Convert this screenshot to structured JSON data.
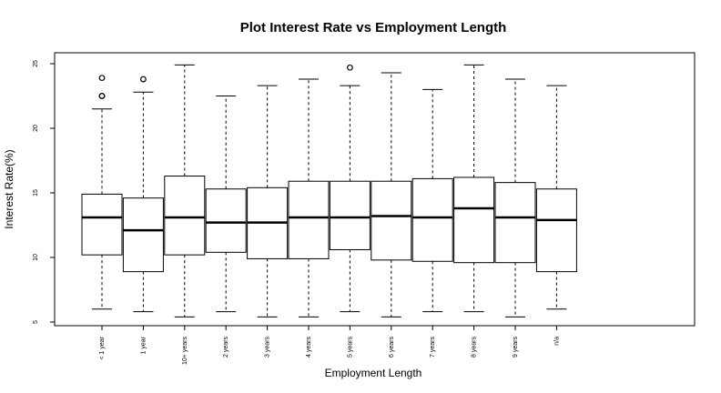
{
  "chart_data": {
    "type": "boxplot",
    "title": "Plot Interest Rate vs Employment Length",
    "xlabel": "Employment Length",
    "ylabel": "Interest Rate(%)",
    "ylim": [
      5,
      25
    ],
    "yticks": [
      5,
      10,
      15,
      20,
      25
    ],
    "grid": false,
    "legend": "none",
    "categories": [
      "< 1 year",
      "1 year",
      "10+ years",
      "2 years",
      "3 years",
      "4 years",
      "5 years",
      "6 years",
      "7 years",
      "8 years",
      "9 years",
      "n/a"
    ],
    "boxes": [
      {
        "category": "< 1 year",
        "min": 6.0,
        "q1": 10.2,
        "median": 13.1,
        "q3": 14.9,
        "max": 21.5,
        "outliers": [
          22.5,
          22.5,
          23.9
        ]
      },
      {
        "category": "1 year",
        "min": 5.8,
        "q1": 8.9,
        "median": 12.1,
        "q3": 14.6,
        "max": 22.8,
        "outliers": [
          23.8
        ]
      },
      {
        "category": "10+ years",
        "min": 5.4,
        "q1": 10.2,
        "median": 13.1,
        "q3": 16.3,
        "max": 24.9,
        "outliers": []
      },
      {
        "category": "2 years",
        "min": 5.8,
        "q1": 10.4,
        "median": 12.7,
        "q3": 15.3,
        "max": 22.5,
        "outliers": []
      },
      {
        "category": "3 years",
        "min": 5.4,
        "q1": 9.9,
        "median": 12.7,
        "q3": 15.4,
        "max": 23.3,
        "outliers": []
      },
      {
        "category": "4 years",
        "min": 5.4,
        "q1": 9.9,
        "median": 13.1,
        "q3": 15.9,
        "max": 23.8,
        "outliers": []
      },
      {
        "category": "5 years",
        "min": 5.8,
        "q1": 10.6,
        "median": 13.1,
        "q3": 15.9,
        "max": 23.3,
        "outliers": [
          24.7
        ]
      },
      {
        "category": "6 years",
        "min": 5.4,
        "q1": 9.8,
        "median": 13.2,
        "q3": 15.9,
        "max": 24.3,
        "outliers": []
      },
      {
        "category": "7 years",
        "min": 5.8,
        "q1": 9.7,
        "median": 13.1,
        "q3": 16.1,
        "max": 23.0,
        "outliers": []
      },
      {
        "category": "8 years",
        "min": 5.8,
        "q1": 9.6,
        "median": 13.8,
        "q3": 16.2,
        "max": 24.9,
        "outliers": []
      },
      {
        "category": "9 years",
        "min": 5.4,
        "q1": 9.6,
        "median": 13.1,
        "q3": 15.8,
        "max": 23.8,
        "outliers": []
      },
      {
        "category": "n/a",
        "min": 6.0,
        "q1": 8.9,
        "median": 12.9,
        "q3": 15.3,
        "max": 23.3,
        "outliers": []
      }
    ]
  }
}
